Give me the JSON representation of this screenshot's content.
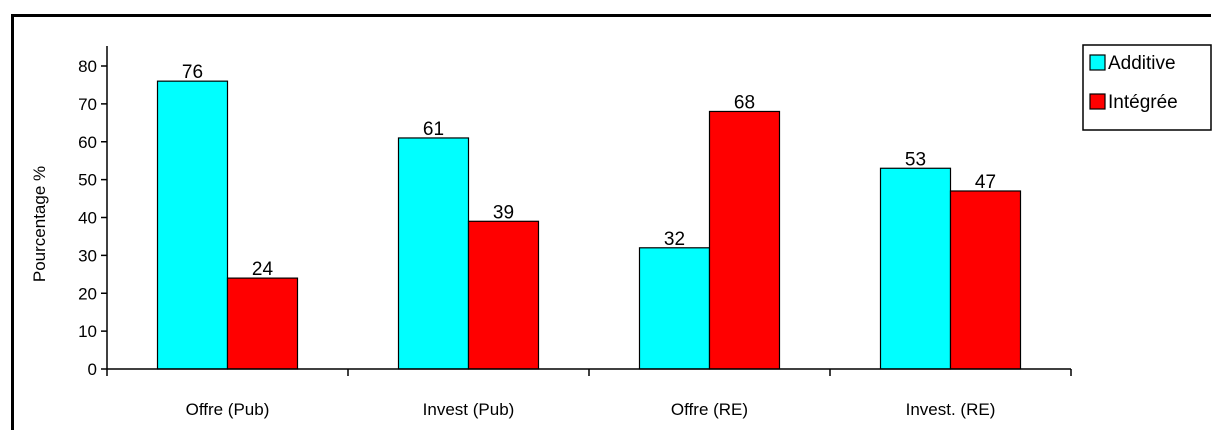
{
  "chart_data": {
    "type": "bar",
    "categories": [
      "Offre (Pub)",
      "Invest (Pub)",
      "Offre (RE)",
      "Invest. (RE)"
    ],
    "series": [
      {
        "name": "Additive",
        "color": "#00FFFF",
        "values": [
          76,
          61,
          32,
          53
        ]
      },
      {
        "name": "Intégrée",
        "color": "#FF0000",
        "values": [
          24,
          39,
          68,
          47
        ]
      }
    ],
    "ylabel": "Pourcentage %",
    "ylim": [
      0,
      80
    ],
    "yticks": [
      0,
      10,
      20,
      30,
      40,
      50,
      60,
      70,
      80
    ],
    "grid": false,
    "legend_position": "top-right"
  }
}
